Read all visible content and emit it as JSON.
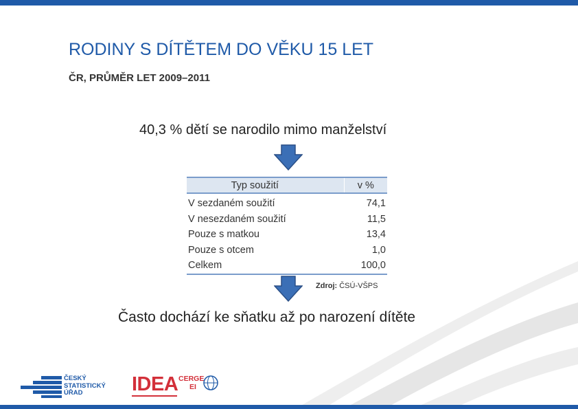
{
  "slide": {
    "title": "RODINY S DÍTĚTEM DO VĚKU 15 LET",
    "subtitle": "ČR, PRŮMĚR LET 2009–2011",
    "stat_line": "40,3 % dětí se narodilo mimo manželství",
    "conclusion": "Často dochází ke sňatku až po narození dítěte"
  },
  "table": {
    "headers": [
      "Typ soužití",
      "v %"
    ],
    "rows": [
      [
        "V sezdaném soužití",
        "74,1"
      ],
      [
        "V nesezdaném soužití",
        "11,5"
      ],
      [
        "Pouze s matkou",
        "13,4"
      ],
      [
        "Pouze s otcem",
        "1,0"
      ],
      [
        "Celkem",
        "100,0"
      ]
    ]
  },
  "source": {
    "label": "Zdroj:",
    "value": "ČSÚ-VŠPS"
  },
  "logos": {
    "csu": {
      "line1": "ČESKÝ",
      "line2": "STATISTICKÝ",
      "line3": "ÚŘAD"
    },
    "idea": {
      "main": "IDEA",
      "cerge": "CERGE",
      "ei": "EI"
    }
  },
  "colors": {
    "brand_blue": "#1f5aa8",
    "arrow_fill": "#3b6fb6",
    "table_header_bg": "#dde6f1",
    "table_rule": "#7a9ccb",
    "idea_red": "#d3303a"
  },
  "icons": {
    "arrow": "arrow-down-icon"
  }
}
